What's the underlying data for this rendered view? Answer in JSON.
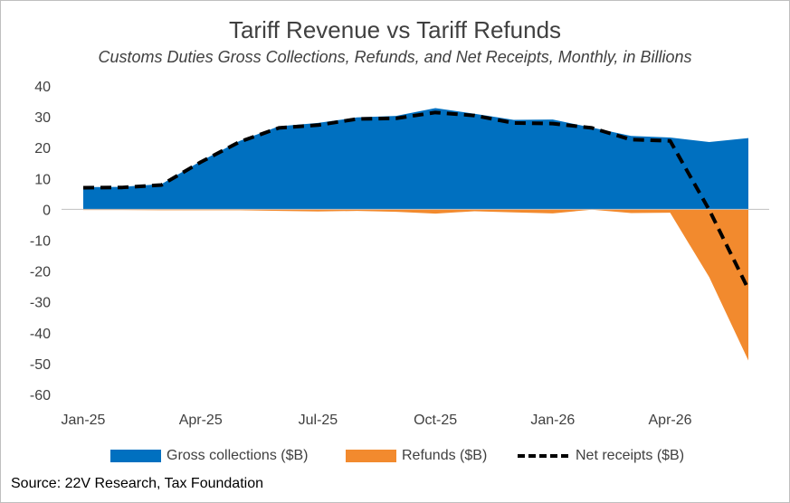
{
  "chart_data": {
    "type": "area",
    "title": "Tariff Revenue vs Tariff Refunds",
    "subtitle": "Customs Duties Gross Collections, Refunds, and Net Receipts, Monthly, in Billions",
    "source": "Source: 22V Research, Tax Foundation",
    "x": [
      "Jan-25",
      "Feb-25",
      "Mar-25",
      "Apr-25",
      "May-25",
      "Jun-25",
      "Jul-25",
      "Aug-25",
      "Sep-25",
      "Oct-25",
      "Nov-25",
      "Dec-25",
      "Jan-26",
      "Feb-26",
      "Mar-26",
      "Apr-26",
      "May-26",
      "Jun-26"
    ],
    "x_tick_labels": [
      "Jan-25",
      "Apr-25",
      "Jul-25",
      "Oct-25",
      "Jan-26",
      "Apr-26"
    ],
    "y_ticks": [
      40,
      30,
      20,
      10,
      0,
      -10,
      -20,
      -30,
      -40,
      -50,
      -60
    ],
    "ylim": [
      -60,
      40
    ],
    "grid": false,
    "legend_position": "bottom",
    "series": [
      {
        "name": "Gross collections ($B)",
        "type": "area",
        "color": "#0070C0",
        "values": [
          7.2,
          7.3,
          8.2,
          15.6,
          22.2,
          26.9,
          28.0,
          29.8,
          30.3,
          32.8,
          31.0,
          29.0,
          29.1,
          26.5,
          23.8,
          23.3,
          21.8,
          23.1
        ]
      },
      {
        "name": "Refunds ($B)",
        "type": "area",
        "color": "#F28A2E",
        "values": [
          -0.2,
          -0.2,
          -0.3,
          -0.3,
          -0.3,
          -0.5,
          -0.7,
          -0.5,
          -0.8,
          -1.4,
          -0.6,
          -1.0,
          -1.3,
          -0.1,
          -1.2,
          -1.1,
          -22.0,
          -49.0
        ]
      },
      {
        "name": "Net receipts ($B)",
        "type": "line",
        "color": "#000000",
        "line_style": "dashed",
        "values": [
          7.0,
          7.1,
          7.9,
          15.3,
          21.9,
          26.4,
          27.3,
          29.3,
          29.5,
          31.4,
          30.4,
          28.0,
          27.8,
          26.4,
          22.6,
          22.2,
          -0.2,
          -25.9
        ]
      }
    ]
  }
}
